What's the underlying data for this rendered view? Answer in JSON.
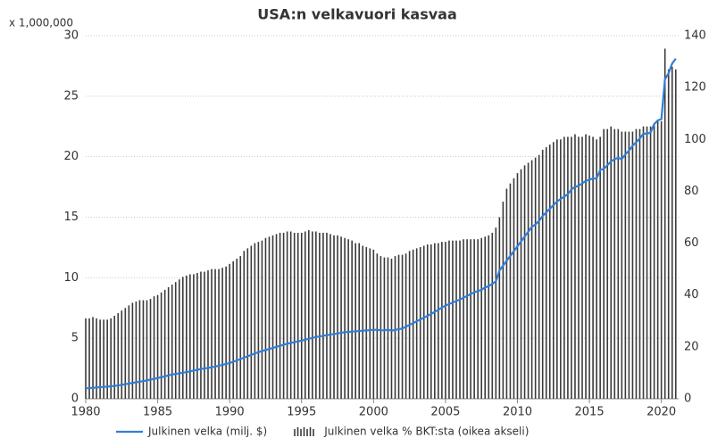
{
  "chart_data": {
    "type": "combo",
    "title": "USA:n velkavuori kasvaa",
    "y_unit_label": "x 1,000,000",
    "x": [
      1980,
      1980.25,
      1980.5,
      1980.75,
      1981,
      1981.25,
      1981.5,
      1981.75,
      1982,
      1982.25,
      1982.5,
      1982.75,
      1983,
      1983.25,
      1983.5,
      1983.75,
      1984,
      1984.25,
      1984.5,
      1984.75,
      1985,
      1985.25,
      1985.5,
      1985.75,
      1986,
      1986.25,
      1986.5,
      1986.75,
      1987,
      1987.25,
      1987.5,
      1987.75,
      1988,
      1988.25,
      1988.5,
      1988.75,
      1989,
      1989.25,
      1989.5,
      1989.75,
      1990,
      1990.25,
      1990.5,
      1990.75,
      1991,
      1991.25,
      1991.5,
      1991.75,
      1992,
      1992.25,
      1992.5,
      1992.75,
      1993,
      1993.25,
      1993.5,
      1993.75,
      1994,
      1994.25,
      1994.5,
      1994.75,
      1995,
      1995.25,
      1995.5,
      1995.75,
      1996,
      1996.25,
      1996.5,
      1996.75,
      1997,
      1997.25,
      1997.5,
      1997.75,
      1998,
      1998.25,
      1998.5,
      1998.75,
      1999,
      1999.25,
      1999.5,
      1999.75,
      2000,
      2000.25,
      2000.5,
      2000.75,
      2001,
      2001.25,
      2001.5,
      2001.75,
      2002,
      2002.25,
      2002.5,
      2002.75,
      2003,
      2003.25,
      2003.5,
      2003.75,
      2004,
      2004.25,
      2004.5,
      2004.75,
      2005,
      2005.25,
      2005.5,
      2005.75,
      2006,
      2006.25,
      2006.5,
      2006.75,
      2007,
      2007.25,
      2007.5,
      2007.75,
      2008,
      2008.25,
      2008.5,
      2008.75,
      2009,
      2009.25,
      2009.5,
      2009.75,
      2010,
      2010.25,
      2010.5,
      2010.75,
      2011,
      2011.25,
      2011.5,
      2011.75,
      2012,
      2012.25,
      2012.5,
      2012.75,
      2013,
      2013.25,
      2013.5,
      2013.75,
      2014,
      2014.25,
      2014.5,
      2014.75,
      2015,
      2015.25,
      2015.5,
      2015.75,
      2016,
      2016.25,
      2016.5,
      2016.75,
      2017,
      2017.25,
      2017.5,
      2017.75,
      2018,
      2018.25,
      2018.5,
      2018.75,
      2019,
      2019.25,
      2019.5,
      2019.75,
      2020,
      2020.25,
      2020.5,
      2020.75,
      2021
    ],
    "series": [
      {
        "name": "Julkinen velka % BKT:sta (oikea akseli)",
        "type": "bar",
        "axis": "y2",
        "color": "#3a3a3a",
        "values": [
          31,
          31,
          31.5,
          31,
          30.5,
          30.5,
          30.5,
          31,
          32,
          33,
          34,
          35,
          36,
          37,
          37.5,
          38,
          38,
          38,
          38.5,
          39.5,
          40,
          41,
          42,
          43,
          44,
          45,
          46,
          47,
          47.5,
          48,
          48,
          48.5,
          49,
          49,
          49.5,
          50,
          50,
          50,
          50.5,
          51,
          52,
          53,
          54,
          55,
          57,
          58,
          59,
          60,
          60.5,
          61,
          62,
          62.5,
          63,
          63.5,
          64,
          64,
          64.5,
          64.5,
          64,
          64,
          64,
          64.5,
          65,
          64.5,
          64.5,
          64,
          64,
          64,
          63.5,
          63,
          63,
          62.5,
          62,
          61.5,
          61,
          60,
          60,
          59,
          58.5,
          58,
          57.5,
          56,
          55,
          54.5,
          54.5,
          54,
          55,
          55.5,
          55.5,
          56,
          57,
          57.5,
          58,
          58.5,
          59,
          59.5,
          59.5,
          60,
          60,
          60.5,
          60.5,
          61,
          61,
          61,
          61,
          61.5,
          61.5,
          61.5,
          61.5,
          61.5,
          62,
          62.5,
          63,
          64,
          66,
          70,
          76,
          81,
          83,
          85,
          87,
          88.5,
          90,
          91,
          92,
          93,
          94,
          96,
          97,
          98,
          99,
          100,
          100,
          101,
          101,
          101,
          102,
          101,
          101,
          102,
          101.5,
          101,
          100,
          101,
          104,
          104,
          105,
          104,
          104,
          103,
          103,
          103,
          103,
          104,
          104,
          105,
          105,
          105,
          106,
          107,
          107,
          135,
          127,
          128,
          127
        ]
      },
      {
        "name": "Julkinen velka (milj. $)",
        "type": "line",
        "axis": "y",
        "color": "#2f7ed8",
        "values": [
          0.86,
          0.88,
          0.91,
          0.93,
          0.96,
          0.98,
          1.0,
          1.03,
          1.06,
          1.1,
          1.15,
          1.2,
          1.26,
          1.31,
          1.36,
          1.41,
          1.46,
          1.52,
          1.58,
          1.65,
          1.71,
          1.78,
          1.85,
          1.93,
          2.0,
          2.05,
          2.1,
          2.15,
          2.2,
          2.26,
          2.33,
          2.39,
          2.45,
          2.5,
          2.55,
          2.6,
          2.66,
          2.73,
          2.8,
          2.88,
          2.95,
          3.06,
          3.17,
          3.28,
          3.4,
          3.51,
          3.62,
          3.74,
          3.85,
          3.94,
          4.02,
          4.11,
          4.2,
          4.29,
          4.37,
          4.46,
          4.55,
          4.61,
          4.68,
          4.74,
          4.8,
          4.88,
          4.95,
          5.03,
          5.1,
          5.15,
          5.2,
          5.25,
          5.3,
          5.35,
          5.4,
          5.45,
          5.5,
          5.52,
          5.55,
          5.57,
          5.6,
          5.62,
          5.65,
          5.67,
          5.7,
          5.7,
          5.65,
          5.66,
          5.7,
          5.63,
          5.68,
          5.75,
          5.8,
          5.95,
          6.1,
          6.25,
          6.4,
          6.55,
          6.7,
          6.85,
          7.0,
          7.18,
          7.35,
          7.53,
          7.7,
          7.82,
          7.95,
          8.07,
          8.2,
          8.35,
          8.5,
          8.65,
          8.8,
          8.9,
          9.0,
          9.2,
          9.3,
          9.5,
          9.7,
          10.6,
          11.0,
          11.4,
          11.8,
          12.2,
          12.6,
          13.0,
          13.4,
          13.8,
          14.2,
          14.4,
          14.7,
          15.1,
          15.4,
          15.7,
          16.0,
          16.3,
          16.5,
          16.7,
          16.9,
          17.3,
          17.5,
          17.6,
          17.8,
          18.0,
          18.1,
          18.2,
          18.2,
          18.9,
          19.0,
          19.3,
          19.6,
          19.8,
          19.9,
          19.8,
          20.2,
          20.5,
          20.9,
          21.2,
          21.5,
          21.9,
          21.9,
          22.0,
          22.7,
          23.0,
          23.1,
          26.4,
          26.9,
          27.7,
          28.1
        ]
      }
    ],
    "xlim": [
      1980,
      2021.2
    ],
    "xticks": [
      1980,
      1985,
      1990,
      1995,
      2000,
      2005,
      2010,
      2015,
      2020
    ],
    "ylim": [
      0,
      30
    ],
    "yticks": [
      0,
      5,
      10,
      15,
      20,
      25,
      30
    ],
    "y2lim": [
      0,
      140
    ],
    "y2ticks": [
      0,
      20,
      40,
      60,
      80,
      100,
      120,
      140
    ],
    "grid": true,
    "legend": "bottom"
  }
}
